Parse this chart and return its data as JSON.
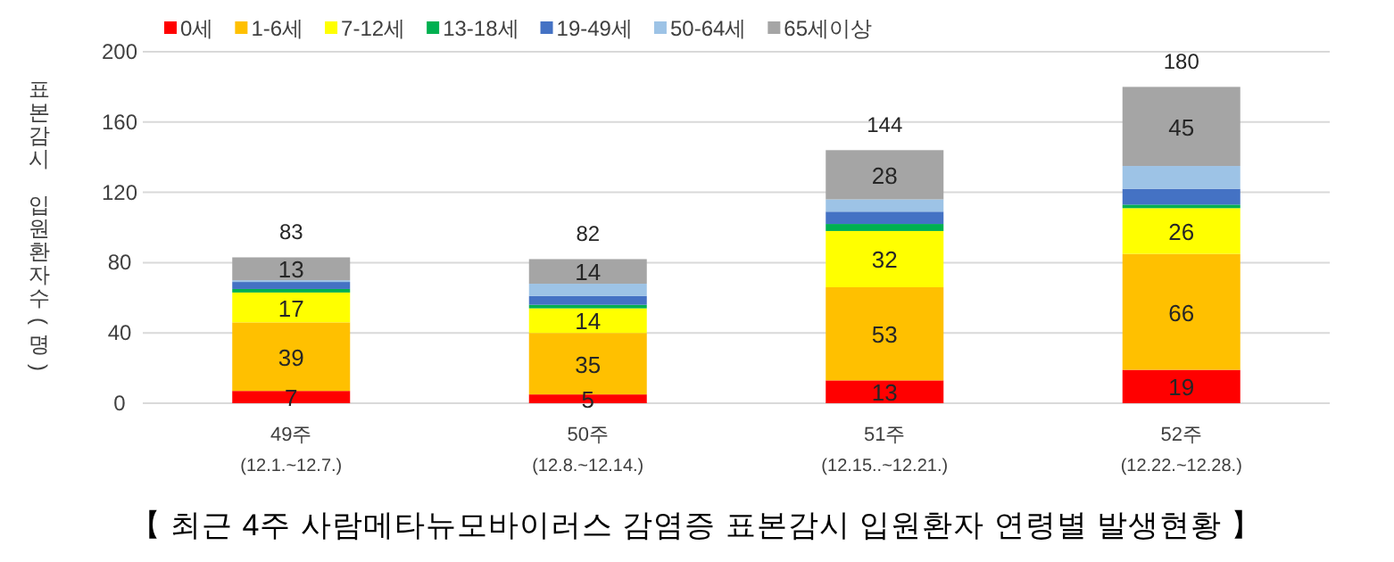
{
  "chart_data": {
    "type": "bar",
    "stacked": true,
    "title": "【 최근 4주 사람메타뉴모바이러스 감염증 표본감시 입원환자 연령별 발생현황 】",
    "ylabel": "표본감시 입원환자수(명)",
    "categories": [
      "49주\n(12.1.~12.7.)",
      "50주\n(12.8.~12.14.)",
      "51주\n(12.15..~12.21.)",
      "52주\n(12.22.~12.28.)"
    ],
    "series": [
      {
        "name": "0세",
        "color": "#ff0000",
        "values": [
          7,
          5,
          13,
          19
        ],
        "value_labels": [
          "7",
          "5",
          "13",
          "19"
        ]
      },
      {
        "name": "1-6세",
        "color": "#ffc000",
        "values": [
          39,
          35,
          53,
          66
        ],
        "value_labels": [
          "39",
          "35",
          "53",
          "66"
        ]
      },
      {
        "name": "7-12세",
        "color": "#ffff00",
        "values": [
          17,
          14,
          32,
          26
        ],
        "value_labels": [
          "17",
          "14",
          "32",
          "26"
        ]
      },
      {
        "name": "13-18세",
        "color": "#00b050",
        "values": [
          2,
          2,
          4,
          2
        ]
      },
      {
        "name": "19-49세",
        "color": "#4472c4",
        "values": [
          4,
          5,
          7,
          9
        ]
      },
      {
        "name": "50-64세",
        "color": "#9dc3e6",
        "values": [
          1,
          7,
          7,
          13
        ]
      },
      {
        "name": "65세이상",
        "color": "#a5a5a5",
        "values": [
          13,
          14,
          28,
          45
        ],
        "value_labels": [
          "13",
          "14",
          "28",
          "45"
        ]
      }
    ],
    "totals": [
      "83",
      "82",
      "144",
      "180"
    ],
    "ylim": [
      0,
      200
    ],
    "yticks": [
      0,
      40,
      80,
      120,
      160,
      200
    ],
    "grid": "y",
    "legend": "top"
  }
}
